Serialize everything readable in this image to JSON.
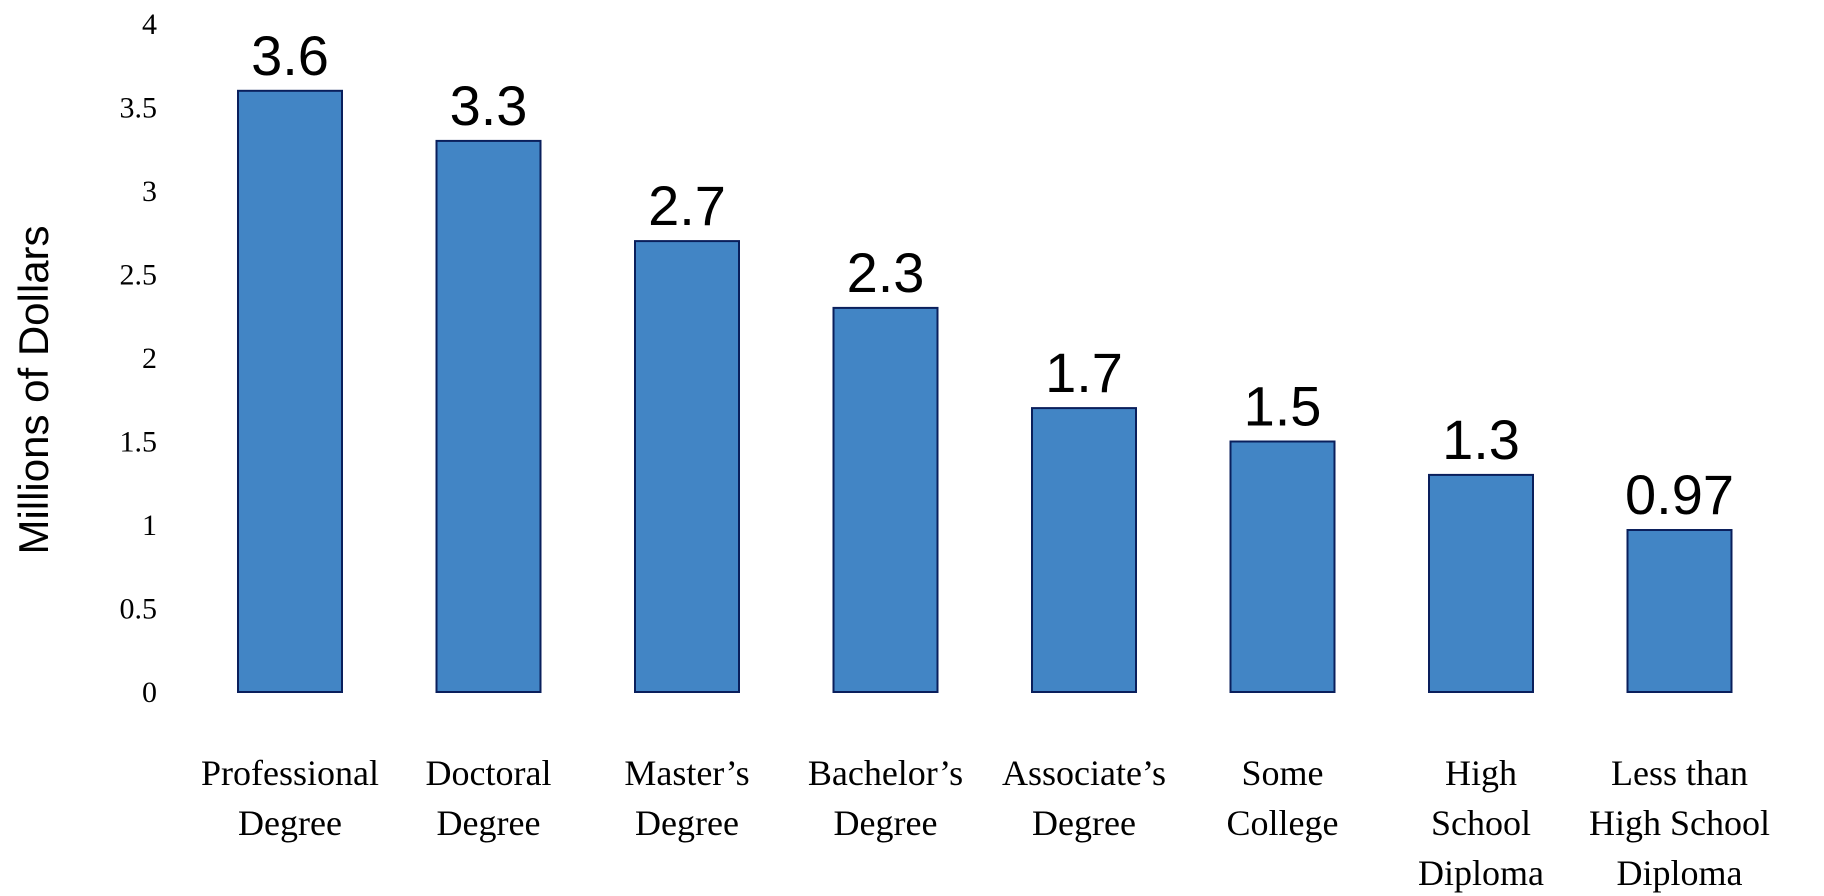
{
  "chart_data": {
    "type": "bar",
    "title": "",
    "xlabel": "",
    "ylabel": "Millions of Dollars",
    "ylim": [
      0,
      4
    ],
    "yticks": [
      0,
      0.5,
      1,
      1.5,
      2,
      2.5,
      3,
      3.5,
      4
    ],
    "ytick_labels": [
      "0",
      "0.5",
      "1",
      "1.5",
      "2",
      "2.5",
      "3",
      "3.5",
      "4"
    ],
    "grid": false,
    "legend": "none",
    "bar_color": "#4285C5",
    "bar_edge_color": "#0a1f5c",
    "categories": [
      [
        "Professional",
        "Degree"
      ],
      [
        "Doctoral",
        "Degree"
      ],
      [
        "Master’s",
        "Degree"
      ],
      [
        "Bachelor’s",
        "Degree"
      ],
      [
        "Associate’s",
        "Degree"
      ],
      [
        "Some",
        "College"
      ],
      [
        "High",
        "School",
        "Diploma"
      ],
      [
        "Less than",
        "High School",
        "Diploma"
      ]
    ],
    "values": [
      3.6,
      3.3,
      2.7,
      2.3,
      1.7,
      1.5,
      1.3,
      0.97
    ],
    "data_labels": [
      "3.6",
      "3.3",
      "2.7",
      "2.3",
      "1.7",
      "1.5",
      "1.3",
      "0.97"
    ]
  }
}
